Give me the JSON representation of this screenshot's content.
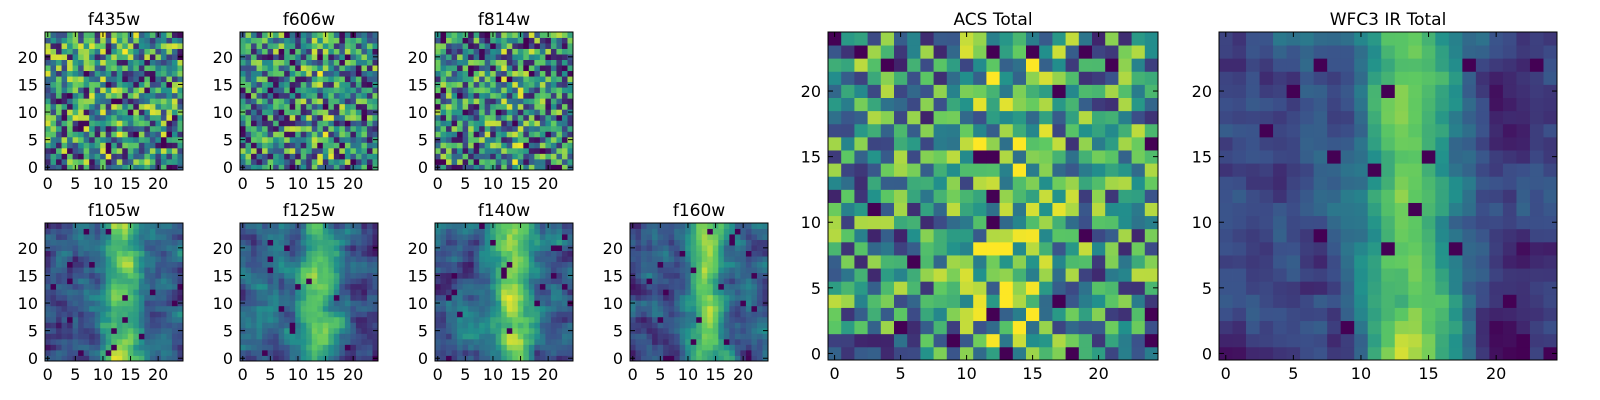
{
  "figure": {
    "background": "#ffffff",
    "colormap": "viridis",
    "colormap_stops": [
      "#440154",
      "#3b528b",
      "#21918c",
      "#5ec962",
      "#fde725"
    ]
  },
  "chart_data": [
    {
      "type": "heatmap",
      "title": "f435w",
      "xticks": [
        "0",
        "5",
        "10",
        "15",
        "20"
      ],
      "yticks": [
        "0",
        "5",
        "10",
        "15",
        "20"
      ],
      "xlim": [
        0,
        25
      ],
      "ylim": [
        0,
        25
      ],
      "grid": false,
      "legend": "none",
      "grid_size": [
        25,
        25
      ],
      "seed": 11,
      "smooth": 0,
      "offset": 0.0,
      "ridge": 0.05,
      "noise": 0.95
    },
    {
      "type": "heatmap",
      "title": "f606w",
      "xticks": [
        "0",
        "5",
        "10",
        "15",
        "20"
      ],
      "yticks": [
        "0",
        "5",
        "10",
        "15",
        "20"
      ],
      "xlim": [
        0,
        25
      ],
      "ylim": [
        0,
        25
      ],
      "grid": false,
      "legend": "none",
      "grid_size": [
        25,
        25
      ],
      "seed": 23,
      "smooth": 0,
      "offset": 0.0,
      "ridge": 0.1,
      "noise": 0.9
    },
    {
      "type": "heatmap",
      "title": "f814w",
      "xticks": [
        "0",
        "5",
        "10",
        "15",
        "20"
      ],
      "yticks": [
        "0",
        "5",
        "10",
        "15",
        "20"
      ],
      "xlim": [
        0,
        25
      ],
      "ylim": [
        0,
        25
      ],
      "grid": false,
      "legend": "none",
      "grid_size": [
        25,
        25
      ],
      "seed": 37,
      "smooth": 0,
      "offset": 0.0,
      "ridge": 0.1,
      "noise": 0.9
    },
    {
      "type": "heatmap",
      "title": "f105w",
      "xticks": [
        "0",
        "5",
        "10",
        "15",
        "20"
      ],
      "yticks": [
        "0",
        "5",
        "10",
        "15",
        "20"
      ],
      "xlim": [
        0,
        25
      ],
      "ylim": [
        0,
        25
      ],
      "grid": false,
      "legend": "none",
      "grid_size": [
        25,
        25
      ],
      "seed": 41,
      "smooth": 1,
      "offset": 0.05,
      "ridge": 0.5,
      "noise": 0.5
    },
    {
      "type": "heatmap",
      "title": "f125w",
      "xticks": [
        "0",
        "5",
        "10",
        "15",
        "20"
      ],
      "yticks": [
        "0",
        "5",
        "10",
        "15",
        "20"
      ],
      "xlim": [
        0,
        25
      ],
      "ylim": [
        0,
        25
      ],
      "grid": false,
      "legend": "none",
      "grid_size": [
        25,
        25
      ],
      "seed": 53,
      "smooth": 1,
      "offset": 0.0,
      "ridge": 0.45,
      "noise": 0.55
    },
    {
      "type": "heatmap",
      "title": "f140w",
      "xticks": [
        "0",
        "5",
        "10",
        "15",
        "20"
      ],
      "yticks": [
        "0",
        "5",
        "10",
        "15",
        "20"
      ],
      "xlim": [
        0,
        25
      ],
      "ylim": [
        0,
        25
      ],
      "grid": false,
      "legend": "none",
      "grid_size": [
        25,
        25
      ],
      "seed": 67,
      "smooth": 1,
      "offset": 0.05,
      "ridge": 0.5,
      "noise": 0.5
    },
    {
      "type": "heatmap",
      "title": "f160w",
      "xticks": [
        "0",
        "5",
        "10",
        "15",
        "20"
      ],
      "yticks": [
        "0",
        "5",
        "10",
        "15",
        "20"
      ],
      "xlim": [
        0,
        25
      ],
      "ylim": [
        0,
        25
      ],
      "grid": false,
      "legend": "none",
      "grid_size": [
        25,
        25
      ],
      "seed": 79,
      "smooth": 1,
      "offset": 0.0,
      "ridge": 0.5,
      "noise": 0.5
    },
    {
      "type": "heatmap",
      "title": "ACS Total",
      "xticks": [
        "0",
        "5",
        "10",
        "15",
        "20"
      ],
      "yticks": [
        "0",
        "5",
        "10",
        "15",
        "20"
      ],
      "xlim": [
        0,
        25
      ],
      "ylim": [
        0,
        25
      ],
      "grid": false,
      "legend": "none",
      "grid_size": [
        25,
        25
      ],
      "seed": 97,
      "smooth": 0,
      "offset": 0.1,
      "ridge": 0.2,
      "noise": 0.8
    },
    {
      "type": "heatmap",
      "title": "WFC3 IR Total",
      "xticks": [
        "0",
        "5",
        "10",
        "15",
        "20"
      ],
      "yticks": [
        "0",
        "5",
        "10",
        "15",
        "20"
      ],
      "xlim": [
        0,
        25
      ],
      "ylim": [
        0,
        25
      ],
      "grid": false,
      "legend": "none",
      "grid_size": [
        25,
        25
      ],
      "seed": 131,
      "smooth": 1,
      "offset": 0.0,
      "ridge": 0.6,
      "noise": 0.4
    }
  ]
}
